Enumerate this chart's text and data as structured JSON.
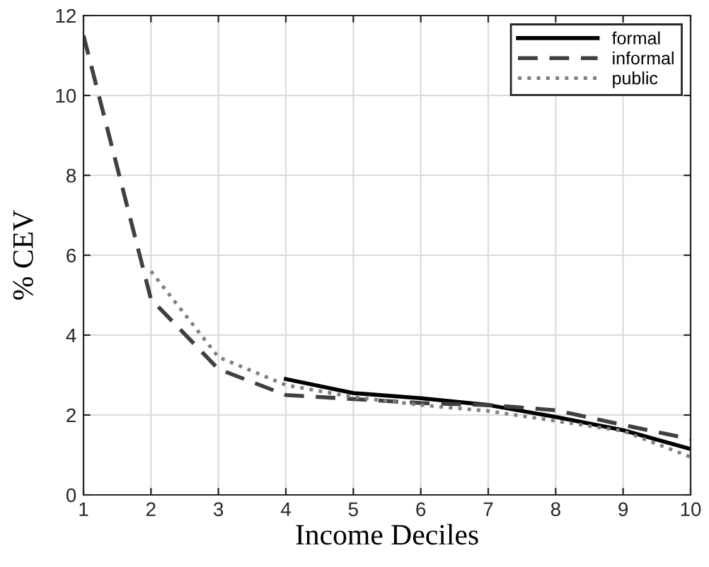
{
  "chart_data": {
    "type": "line",
    "xlabel": "Income Deciles",
    "ylabel": "% CEV",
    "x": [
      1,
      2,
      3,
      4,
      5,
      6,
      7,
      8,
      9,
      10
    ],
    "series": [
      {
        "name": "formal",
        "color": "#000000",
        "line_style": "solid",
        "values": [
          null,
          null,
          null,
          2.9,
          2.55,
          2.42,
          2.25,
          1.95,
          1.62,
          1.15
        ]
      },
      {
        "name": "informal",
        "color": "#404040",
        "line_style": "dashed",
        "values": [
          11.5,
          4.9,
          3.15,
          2.5,
          2.4,
          2.3,
          2.25,
          2.12,
          1.75,
          1.4
        ]
      },
      {
        "name": "public",
        "color": "#808080",
        "line_style": "dotted",
        "values": [
          null,
          5.6,
          3.45,
          2.75,
          2.45,
          2.25,
          2.1,
          1.85,
          1.6,
          0.95
        ]
      }
    ],
    "xlim": [
      1,
      10
    ],
    "xticks": [
      1,
      2,
      3,
      4,
      5,
      6,
      7,
      8,
      9,
      10
    ],
    "ylim": [
      0,
      12
    ],
    "yticks": [
      0,
      2,
      4,
      6,
      8,
      10,
      12
    ],
    "grid": true,
    "legend": "top right",
    "marker": "none"
  }
}
